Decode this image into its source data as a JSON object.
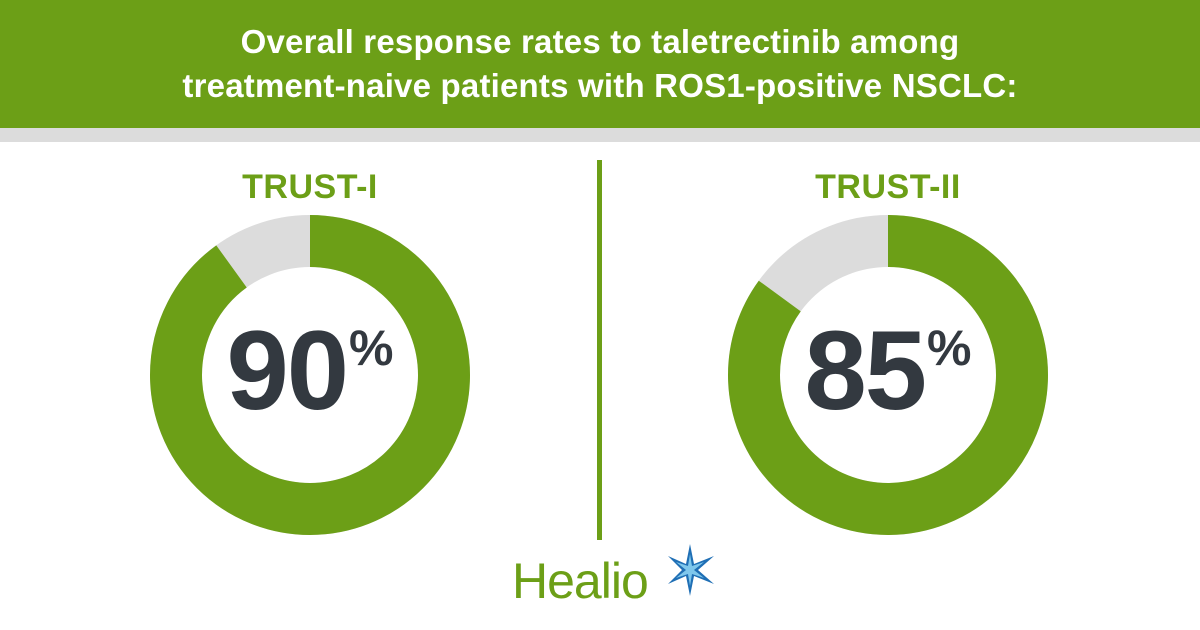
{
  "header": {
    "title_line1": "Overall response rates to taletrectinib among",
    "title_line2": "treatment-naive patients with ROS1-positive NSCLC:"
  },
  "chart_data": {
    "type": "pie",
    "variant": "donut",
    "colors": {
      "fill": "#6c9f17",
      "remainder": "#dcdcdc",
      "text": "#333940"
    },
    "charts": [
      {
        "label": "TRUST-I",
        "value": 90,
        "display": "90",
        "unit": "%"
      },
      {
        "label": "TRUST-II",
        "value": 85,
        "display": "85",
        "unit": "%"
      }
    ]
  },
  "logo": {
    "text": "Healio",
    "icon": "star-icon"
  }
}
